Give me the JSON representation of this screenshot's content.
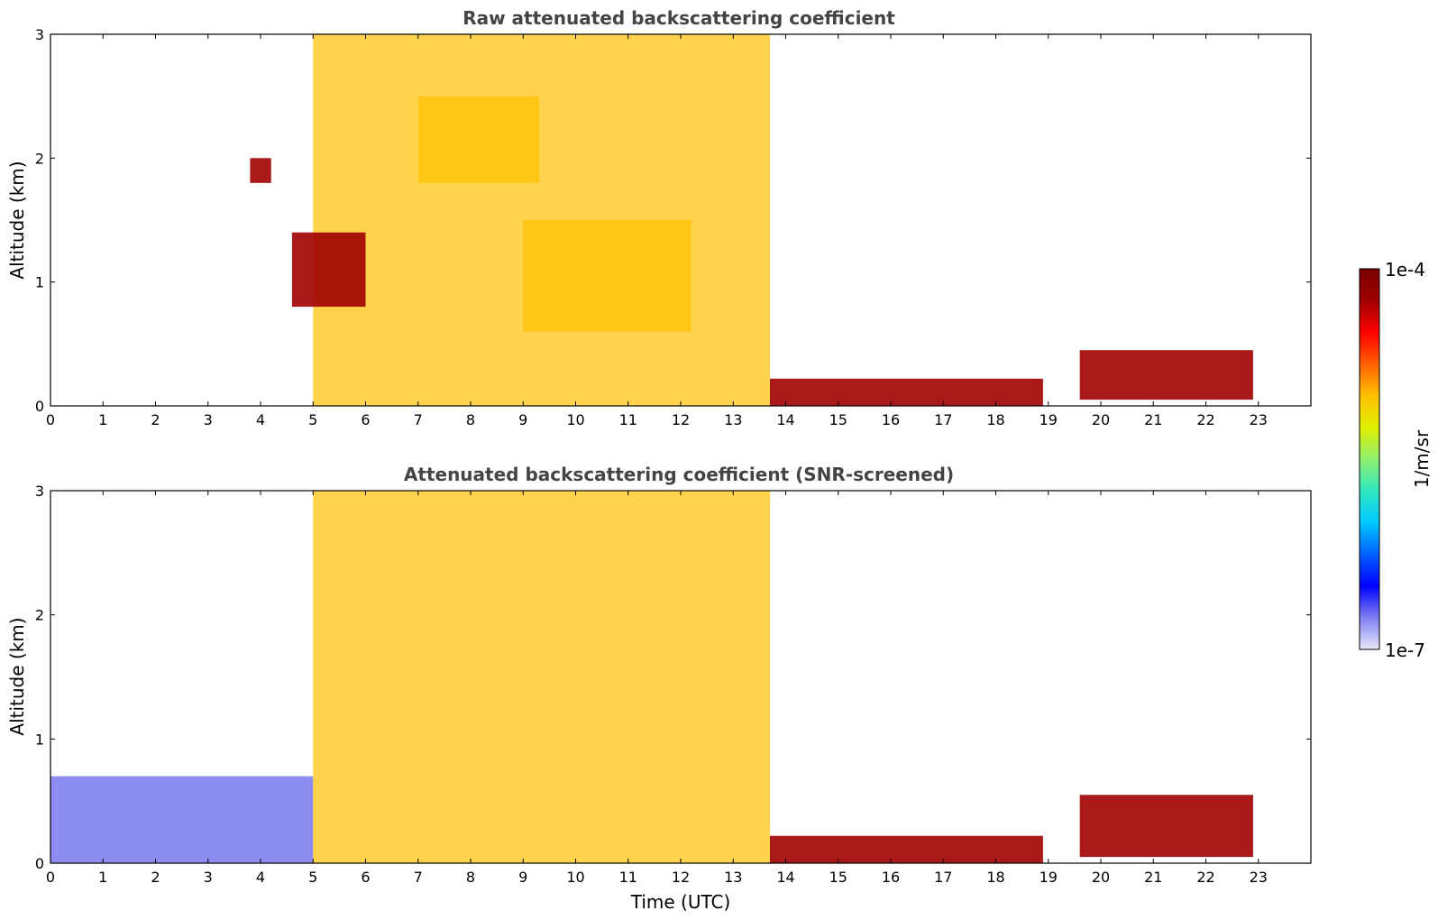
{
  "chart_data": [
    {
      "type": "heatmap",
      "title": "Raw attenuated backscattering coefficient",
      "xlabel": "",
      "ylabel": "Altitude (km)",
      "xlim": [
        0,
        24
      ],
      "ylim": [
        0,
        3
      ],
      "xticks": [
        "0",
        "1",
        "2",
        "3",
        "4",
        "5",
        "6",
        "7",
        "8",
        "9",
        "10",
        "11",
        "12",
        "13",
        "14",
        "15",
        "16",
        "17",
        "18",
        "19",
        "20",
        "21",
        "22",
        "23"
      ],
      "yticks": [
        "0",
        "1",
        "2",
        "3"
      ],
      "features": [
        {
          "label": "cloud/aerosol layers",
          "x_range": [
            5.0,
            13.7
          ],
          "y_range": [
            0.0,
            3.0
          ],
          "peak": "high"
        },
        {
          "label": "elevated layer",
          "x_range": [
            7.0,
            9.3
          ],
          "y_range": [
            1.8,
            2.5
          ],
          "peak": "high"
        },
        {
          "label": "elevated layer",
          "x_range": [
            9.0,
            12.2
          ],
          "y_range": [
            0.6,
            1.5
          ],
          "peak": "high"
        },
        {
          "label": "strong echo",
          "x_range": [
            3.8,
            4.2
          ],
          "y_range": [
            1.8,
            2.0
          ],
          "peak": "max"
        },
        {
          "label": "strong echo",
          "x_range": [
            4.6,
            6.0
          ],
          "y_range": [
            0.8,
            1.4
          ],
          "peak": "max"
        },
        {
          "label": "low layer",
          "x_range": [
            13.7,
            18.9
          ],
          "y_range": [
            0.0,
            0.22
          ],
          "peak": "max"
        },
        {
          "label": "low layer",
          "x_range": [
            19.6,
            22.9
          ],
          "y_range": [
            0.05,
            0.45
          ],
          "peak": "max"
        }
      ]
    },
    {
      "type": "heatmap",
      "title": "Attenuated backscattering coefficient (SNR-screened)",
      "xlabel": "Time (UTC)",
      "ylabel": "Altitude (km)",
      "xlim": [
        0,
        24
      ],
      "ylim": [
        0,
        3
      ],
      "xticks": [
        "0",
        "1",
        "2",
        "3",
        "4",
        "5",
        "6",
        "7",
        "8",
        "9",
        "10",
        "11",
        "12",
        "13",
        "14",
        "15",
        "16",
        "17",
        "18",
        "19",
        "20",
        "21",
        "22",
        "23"
      ],
      "yticks": [
        "0",
        "1",
        "2",
        "3"
      ],
      "features": [
        {
          "label": "boundary layer",
          "x_range": [
            0.0,
            5.0
          ],
          "y_range": [
            0.0,
            0.7
          ],
          "peak": "low"
        },
        {
          "label": "cloud/aerosol layers",
          "x_range": [
            5.0,
            13.7
          ],
          "y_range": [
            0.0,
            3.0
          ],
          "peak": "high"
        },
        {
          "label": "low layer",
          "x_range": [
            13.7,
            18.9
          ],
          "y_range": [
            0.0,
            0.22
          ],
          "peak": "max"
        },
        {
          "label": "low layer",
          "x_range": [
            19.6,
            22.9
          ],
          "y_range": [
            0.05,
            0.55
          ],
          "peak": "max"
        }
      ]
    }
  ],
  "colorbar": {
    "max_label": "1e-4",
    "min_label": "1e-7",
    "label": "1/m/sr",
    "colors": [
      "#e8e8fa",
      "#8080f0",
      "#0000ff",
      "#0060ff",
      "#00c8ff",
      "#30e8c0",
      "#90f070",
      "#e0f000",
      "#ffc000",
      "#ff6000",
      "#ff0000",
      "#a00000",
      "#7a0000"
    ]
  },
  "colors": {
    "title": "#444444",
    "screened_background": "#ffffff"
  }
}
